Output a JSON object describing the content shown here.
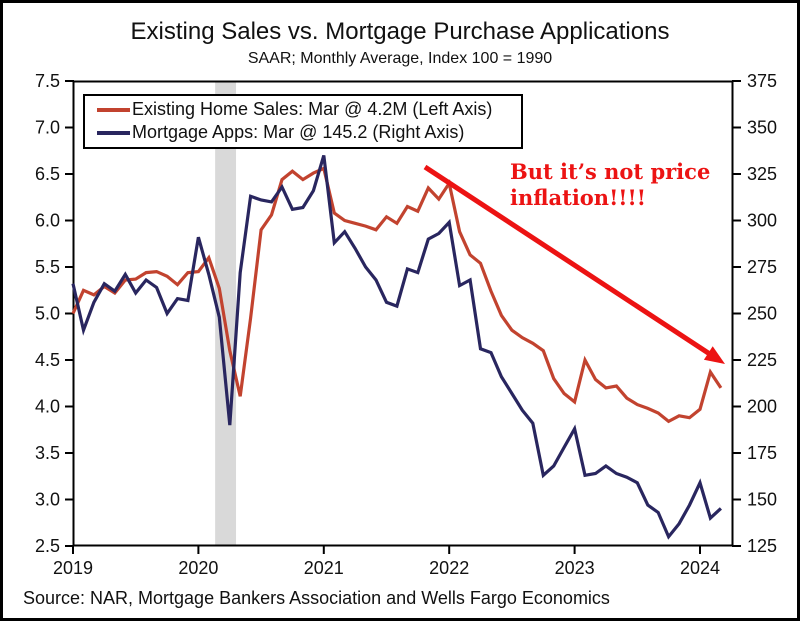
{
  "title": "Existing Sales vs. Mortgage Purchase Applications",
  "subtitle": "SAAR; Monthly Average, Index 100 = 1990",
  "source": "Source: NAR, Mortgage Bankers Association and Wells Fargo Economics",
  "annotation": {
    "line1": "But it’s not price",
    "line2": "inflation!!!!",
    "color": "#ec1313"
  },
  "legend": [
    {
      "label": "Existing Home Sales: Mar @ 4.2M (Left Axis)",
      "color": "#c2432f"
    },
    {
      "label": "Mortgage Apps: Mar @ 145.2 (Right Axis)",
      "color": "#29265f"
    }
  ],
  "chart_data": {
    "type": "line",
    "x_unit": "month",
    "x_start": "2019-01",
    "x_end": "2024-03",
    "x_tick_labels": [
      "2019",
      "2020",
      "2021",
      "2022",
      "2023",
      "2024"
    ],
    "grid": false,
    "left_axis": {
      "min": 2.5,
      "max": 7.5,
      "tick_labels": [
        "7.5",
        "7.0",
        "6.5",
        "6.0",
        "5.5",
        "5.0",
        "4.5",
        "4.0",
        "3.5",
        "3.0",
        "2.5"
      ]
    },
    "right_axis": {
      "min": 125,
      "max": 375,
      "tick_labels": [
        "375",
        "350",
        "325",
        "300",
        "275",
        "250",
        "225",
        "200",
        "175",
        "150",
        "125"
      ]
    },
    "recession_band": {
      "from": "2020-02",
      "to": "2020-04",
      "color": "#d9d9d9"
    },
    "series": [
      {
        "name": "Existing Home Sales",
        "axis": "left",
        "color": "#c2432f",
        "last_point_label": "Mar @ 4.2M",
        "values": [
          5.0,
          5.25,
          5.2,
          5.29,
          5.22,
          5.36,
          5.37,
          5.44,
          5.45,
          5.4,
          5.31,
          5.44,
          5.45,
          5.6,
          5.27,
          4.6,
          4.11,
          4.95,
          5.9,
          6.06,
          6.44,
          6.53,
          6.44,
          6.51,
          6.56,
          6.08,
          6.0,
          5.97,
          5.94,
          5.9,
          6.04,
          5.97,
          6.15,
          6.1,
          6.35,
          6.23,
          6.4,
          5.88,
          5.63,
          5.54,
          5.24,
          4.98,
          4.82,
          4.74,
          4.68,
          4.6,
          4.3,
          4.14,
          4.05,
          4.5,
          4.29,
          4.2,
          4.22,
          4.09,
          4.02,
          3.98,
          3.93,
          3.84,
          3.9,
          3.88,
          3.97,
          4.37,
          4.2
        ]
      },
      {
        "name": "Mortgage Apps",
        "axis": "right",
        "color": "#29265f",
        "last_point_label": "Mar @ 145.2",
        "values": [
          266,
          241,
          256,
          266,
          262,
          271,
          261,
          268,
          264,
          250,
          258,
          257,
          291,
          271,
          248,
          190,
          272,
          313,
          311,
          310,
          318,
          306,
          307,
          316,
          335,
          288,
          294,
          285,
          275,
          268,
          256,
          254,
          274,
          272,
          290,
          293,
          299,
          265,
          268,
          231,
          229,
          216,
          207,
          198,
          191,
          163,
          168,
          178,
          188,
          163,
          164,
          168,
          164,
          162,
          159,
          147,
          143,
          130,
          137,
          147,
          159,
          140,
          145.2
        ]
      }
    ]
  }
}
